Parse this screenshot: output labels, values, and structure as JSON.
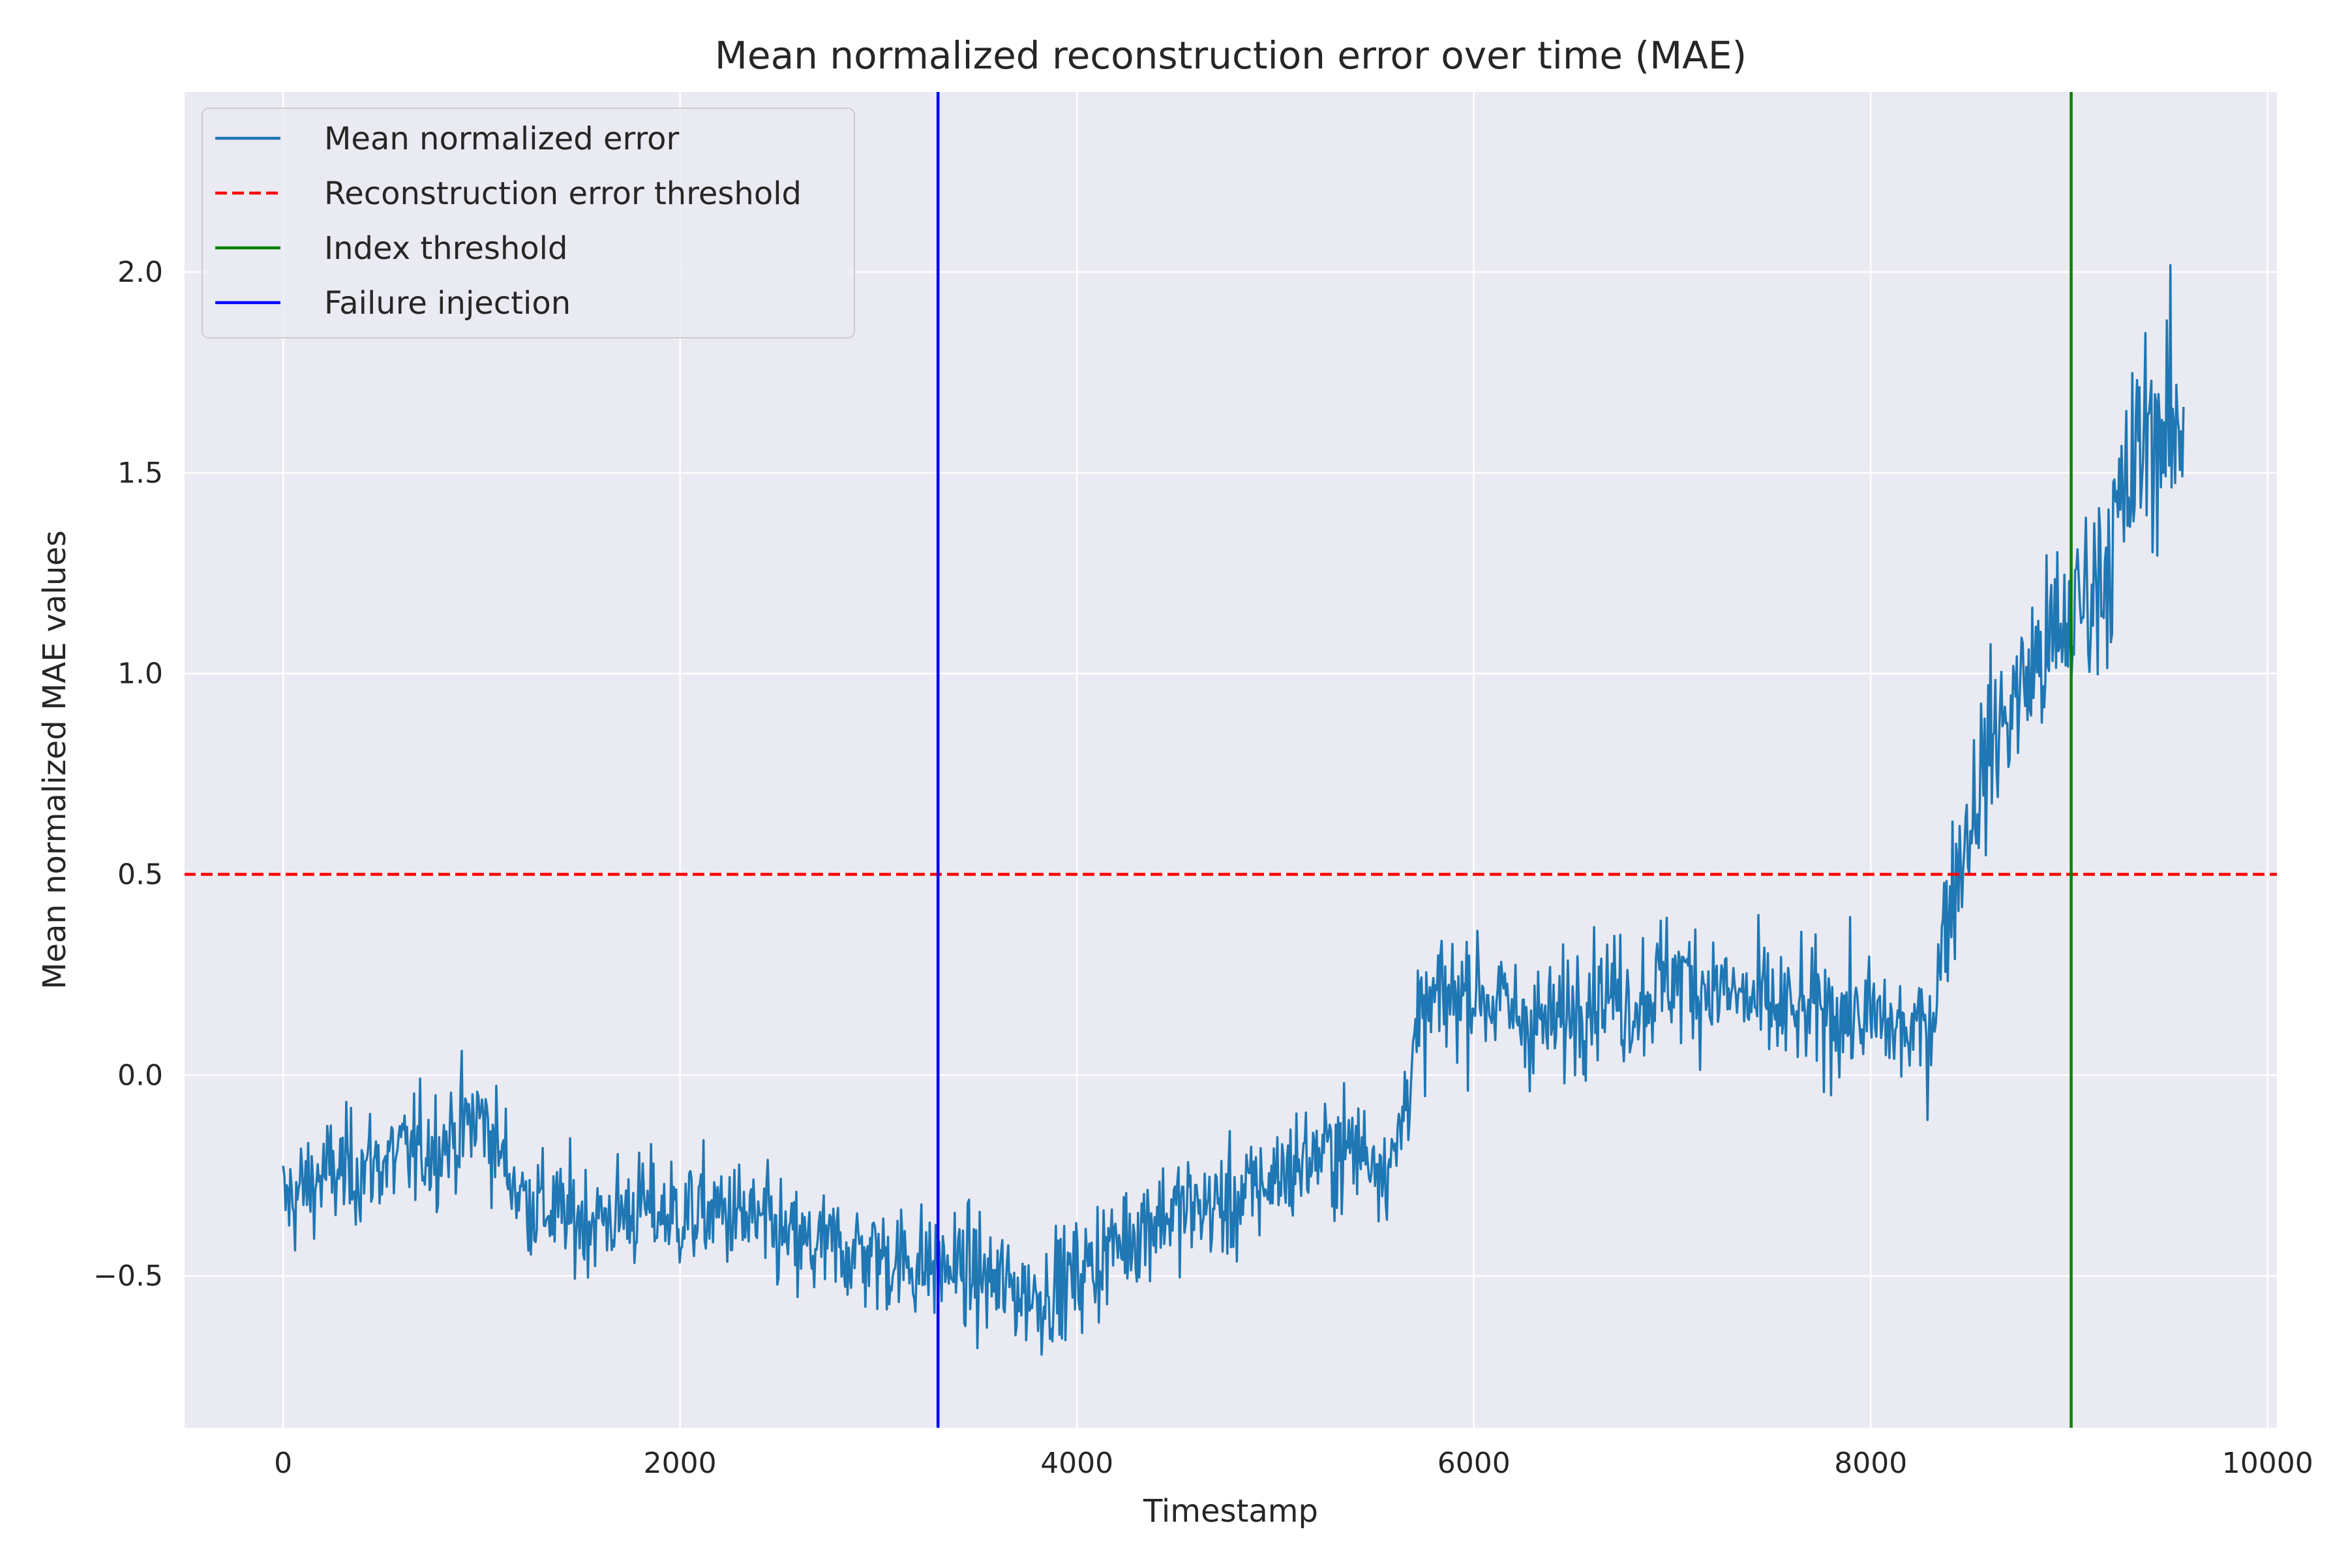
{
  "chart_data": {
    "type": "line",
    "title": "Mean normalized reconstruction error over time (MAE)",
    "xlabel": "Timestamp",
    "ylabel": "Mean normalized MAE values",
    "xlim": [
      -500,
      10050
    ],
    "ylim": [
      -0.88,
      2.45
    ],
    "xticks": [
      0,
      2000,
      4000,
      6000,
      8000,
      10000
    ],
    "xtick_labels": [
      "0",
      "2000",
      "4000",
      "6000",
      "8000",
      "10000"
    ],
    "yticks": [
      -0.5,
      0.0,
      0.5,
      1.0,
      1.5,
      2.0
    ],
    "ytick_labels": [
      "−0.5",
      "0.0",
      "0.5",
      "1.0",
      "1.5",
      "2.0"
    ],
    "grid": true,
    "legend_position": "top-left",
    "background": "#eaeaf2",
    "series": [
      {
        "name": "Mean normalized error",
        "color": "#1f77b4",
        "x": [
          0,
          200,
          400,
          600,
          800,
          1000,
          1200,
          1400,
          1600,
          1800,
          2000,
          2200,
          2400,
          2600,
          2800,
          3000,
          3200,
          3400,
          3600,
          3800,
          4000,
          4200,
          4400,
          4600,
          4800,
          5000,
          5200,
          5400,
          5600,
          5700,
          5800,
          6000,
          6200,
          6400,
          6600,
          6800,
          7000,
          7200,
          7400,
          7600,
          7800,
          8000,
          8200,
          8300,
          8400,
          8600,
          8800,
          9000,
          9200,
          9400,
          9580
        ],
        "y": [
          -0.32,
          -0.25,
          -0.23,
          -0.2,
          -0.17,
          -0.1,
          -0.3,
          -0.35,
          -0.36,
          -0.33,
          -0.35,
          -0.34,
          -0.37,
          -0.43,
          -0.43,
          -0.45,
          -0.47,
          -0.48,
          -0.52,
          -0.55,
          -0.5,
          -0.42,
          -0.35,
          -0.33,
          -0.32,
          -0.25,
          -0.2,
          -0.18,
          -0.22,
          0.08,
          0.18,
          0.22,
          0.15,
          0.12,
          0.22,
          0.18,
          0.25,
          0.22,
          0.18,
          0.15,
          0.16,
          0.14,
          0.1,
          0.12,
          0.45,
          0.82,
          1.0,
          1.12,
          1.3,
          1.62,
          1.58
        ],
        "noise": 0.12
      }
    ],
    "reference_lines": [
      {
        "name": "Reconstruction error threshold",
        "orientation": "horizontal",
        "value": 0.5,
        "color": "#ff0000",
        "style": "dashed"
      },
      {
        "name": "Index threshold",
        "orientation": "vertical",
        "value": 9010,
        "color": "#008000",
        "style": "solid"
      },
      {
        "name": "Failure injection",
        "orientation": "vertical",
        "value": 3300,
        "color": "#0000ff",
        "style": "solid"
      }
    ]
  }
}
